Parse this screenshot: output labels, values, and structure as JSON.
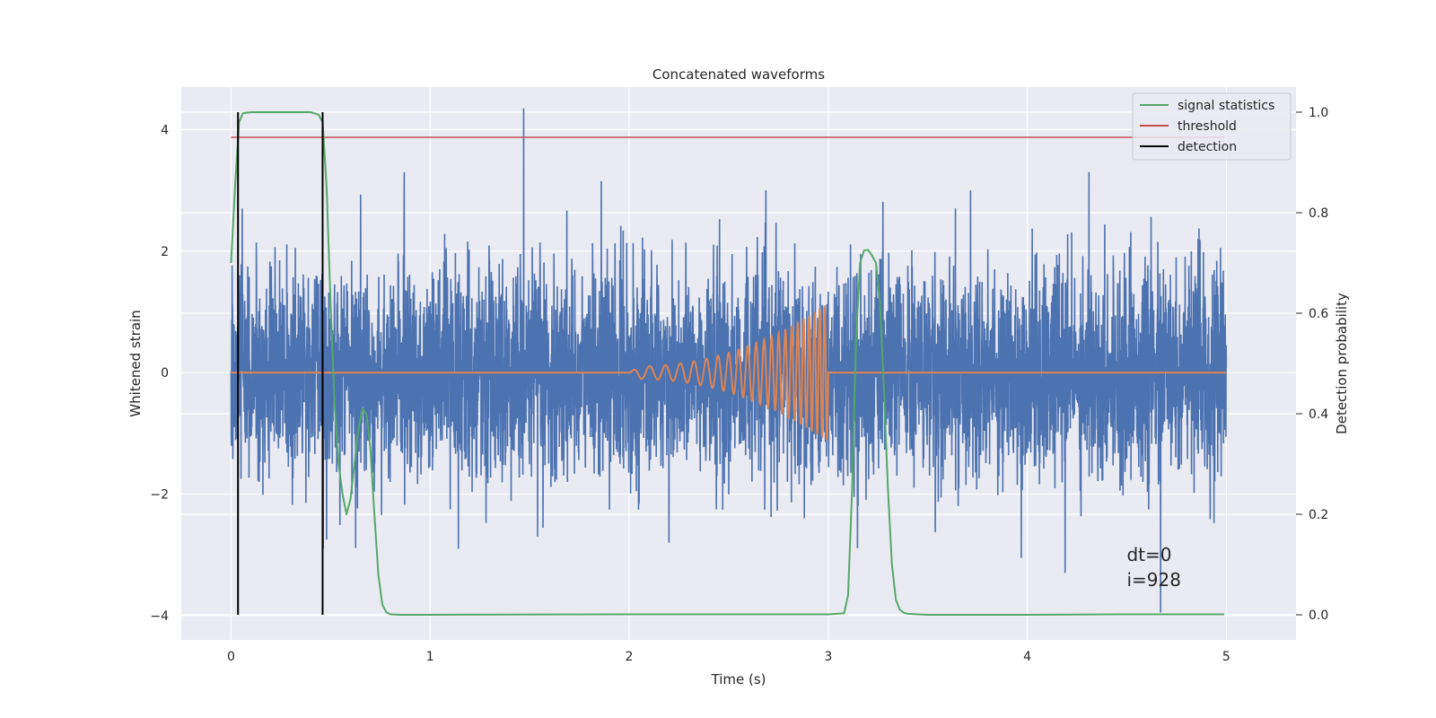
{
  "chart_data": {
    "type": "line",
    "title": "Concatenated waveforms",
    "xlabel": "Time (s)",
    "ylabel": "Whitened strain",
    "y2label": "Detection probability",
    "xlim": [
      -0.25,
      5.35
    ],
    "ylim": [
      -4.4,
      4.7
    ],
    "y2lim": [
      -0.05,
      1.05
    ],
    "x_ticks": [
      0,
      1,
      2,
      3,
      4,
      5
    ],
    "x_tick_labels": [
      "0",
      "1",
      "2",
      "3",
      "4",
      "5"
    ],
    "y_ticks": [
      -4,
      -2,
      0,
      2,
      4
    ],
    "y_tick_labels": [
      "−4",
      "−2",
      "0",
      "2",
      "4"
    ],
    "y2_ticks": [
      0.0,
      0.2,
      0.4,
      0.6,
      0.8,
      1.0
    ],
    "y2_tick_labels": [
      "0.0",
      "0.2",
      "0.4",
      "0.6",
      "0.8",
      "1.0"
    ],
    "grid": true,
    "legend_position": "top-right",
    "legend": [
      {
        "label": "signal statistics",
        "color": "#55a868"
      },
      {
        "label": "threshold",
        "color": "#c44e52"
      },
      {
        "label": "detection",
        "color": "#000000"
      }
    ],
    "annotation": {
      "line1": "dt=0",
      "line2": "i=928",
      "x": 4.5,
      "y": -3.0
    },
    "noise": {
      "color": "#4c72b0",
      "x_range": [
        0,
        5
      ],
      "spikes": [
        {
          "x": 1.47,
          "y": 4.35
        },
        {
          "x": 0.87,
          "y": 3.3
        },
        {
          "x": 4.31,
          "y": 3.3
        },
        {
          "x": 4.67,
          "y": -3.95
        },
        {
          "x": 3.97,
          "y": -3.05
        },
        {
          "x": 4.19,
          "y": -3.3
        },
        {
          "x": 1.86,
          "y": 3.15
        },
        {
          "x": 2.2,
          "y": -2.8
        },
        {
          "x": 1.54,
          "y": -2.7
        },
        {
          "x": 0.48,
          "y": -2.75
        }
      ]
    },
    "injection": {
      "color": "#dd8452",
      "x_start": 2.0,
      "x_end": 3.0,
      "f_start": 12,
      "f_end": 42,
      "amp_start": 0.1,
      "amp_end": 1.15
    },
    "signal_statistics": {
      "color": "#55a868",
      "axis": "right",
      "x": [
        0,
        0.02,
        0.04,
        0.06,
        0.1,
        0.2,
        0.3,
        0.4,
        0.44,
        0.46,
        0.48,
        0.5,
        0.52,
        0.54,
        0.56,
        0.58,
        0.6,
        0.62,
        0.64,
        0.66,
        0.68,
        0.7,
        0.72,
        0.74,
        0.76,
        0.78,
        0.8,
        0.85,
        1.0,
        2.0,
        3.0,
        3.08,
        3.1,
        3.12,
        3.14,
        3.16,
        3.18,
        3.2,
        3.22,
        3.24,
        3.26,
        3.28,
        3.3,
        3.32,
        3.34,
        3.36,
        3.38,
        3.4,
        3.45,
        3.5,
        4.0,
        4.5,
        4.99
      ],
      "y": [
        0.7,
        0.85,
        0.98,
        0.998,
        1.0,
        1.0,
        1.0,
        1.0,
        0.995,
        0.98,
        0.85,
        0.62,
        0.42,
        0.3,
        0.24,
        0.2,
        0.23,
        0.3,
        0.37,
        0.41,
        0.4,
        0.33,
        0.2,
        0.08,
        0.02,
        0.005,
        0.001,
        0.0,
        0.0,
        0.001,
        0.001,
        0.003,
        0.04,
        0.25,
        0.55,
        0.7,
        0.725,
        0.726,
        0.715,
        0.7,
        0.62,
        0.45,
        0.25,
        0.1,
        0.03,
        0.01,
        0.004,
        0.002,
        0.001,
        0.0,
        0.0,
        0.001,
        0.001
      ]
    },
    "threshold": {
      "color": "#c44e52",
      "axis": "right",
      "value": 0.95,
      "x_range": [
        0,
        4.99
      ]
    },
    "detections": {
      "color": "#000000",
      "axis": "right",
      "x": [
        0.035,
        0.46
      ],
      "y_range": [
        0,
        1.0
      ]
    }
  }
}
